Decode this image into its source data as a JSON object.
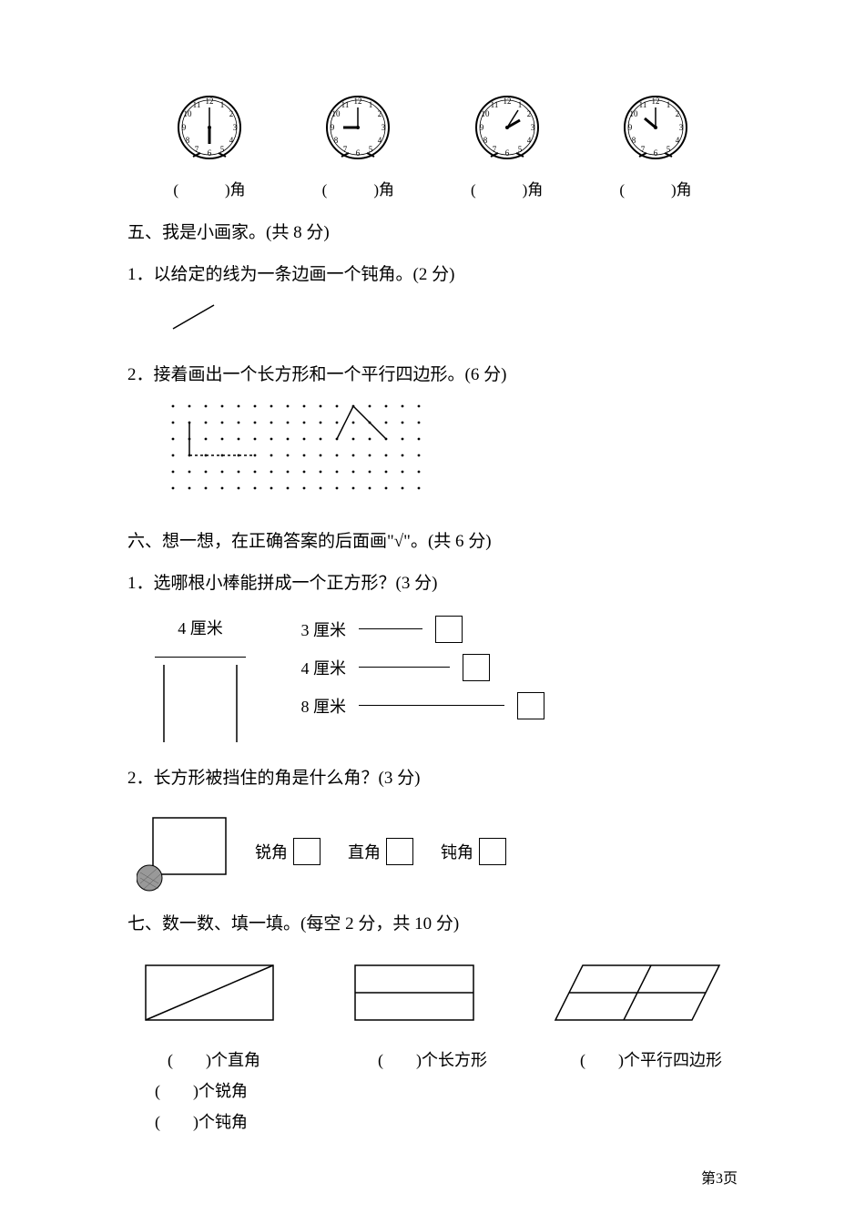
{
  "clocks": {
    "numbers": [
      "12",
      "1",
      "2",
      "3",
      "4",
      "5",
      "6",
      "7",
      "8",
      "9",
      "10",
      "11"
    ],
    "items": [
      {
        "hour_angle": 180,
        "minute_angle": 0,
        "label_prefix": "(",
        "label_suffix": ")角"
      },
      {
        "hour_angle": 270,
        "minute_angle": 0,
        "label_prefix": "(",
        "label_suffix": ")角"
      },
      {
        "hour_angle": 60,
        "minute_angle": 30,
        "label_prefix": "(",
        "label_suffix": ")角"
      },
      {
        "hour_angle": 300,
        "minute_angle": 0,
        "label_prefix": "(",
        "label_suffix": ")角"
      }
    ]
  },
  "section5": {
    "header": "五、我是小画家。(共 8 分)",
    "q1": "1．以给定的线为一条边画一个钝角。(2 分)",
    "q2": "2．接着画出一个长方形和一个平行四边形。(6 分)",
    "dot_grid": {
      "rows": 6,
      "cols": 16,
      "spacing": 18
    }
  },
  "section6": {
    "header": "六、想一想，在正确答案的后面画\"√\"。(共 6 分)",
    "q1": "1．选哪根小棒能拼成一个正方形？(3 分)",
    "sticks": {
      "left_label": "4 厘米",
      "options": [
        {
          "label": "3 厘米",
          "len": 70
        },
        {
          "label": "4 厘米",
          "len": 100
        },
        {
          "label": "8 厘米",
          "len": 160
        }
      ]
    },
    "q2": "2．长方形被挡住的角是什么角？(3 分)",
    "angle_options": [
      {
        "label": "锐角"
      },
      {
        "label": "直角"
      },
      {
        "label": "钝角"
      }
    ]
  },
  "section7": {
    "header": "七、数一数、填一填。(每空 2 分，共 10 分)",
    "labels": [
      "(　　)个直角",
      "(　　)个长方形",
      "(　　)个平行四边形"
    ],
    "extra": [
      "(　　)个锐角",
      "(　　)个钝角"
    ]
  },
  "page_number": "第3页",
  "colors": {
    "bg": "#ffffff",
    "text": "#000000",
    "stroke": "#000000"
  }
}
